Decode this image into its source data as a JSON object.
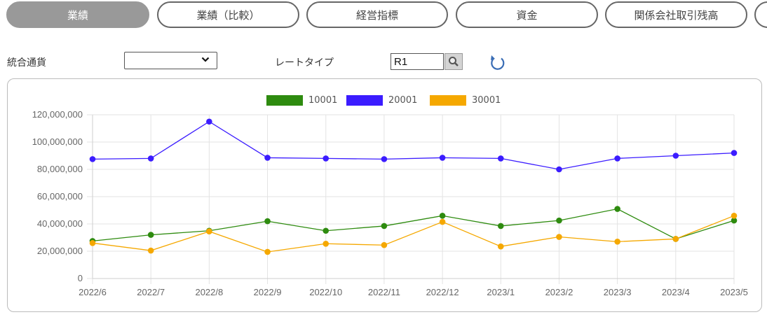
{
  "tabs": [
    {
      "label": "業績",
      "active": true
    },
    {
      "label": "業績（比較）",
      "active": false
    },
    {
      "label": "経営指標",
      "active": false
    },
    {
      "label": "資金",
      "active": false
    },
    {
      "label": "関係会社取引残高",
      "active": false
    },
    {
      "label": "",
      "active": false
    }
  ],
  "filters": {
    "currency_label": "統合通貨",
    "currency_value": "",
    "rate_type_label": "レートタイプ",
    "rate_type_value": "R1"
  },
  "icons": {
    "select_chevron": "chevron-down-icon",
    "search": "search-icon",
    "refresh": "refresh-icon"
  },
  "chart_data": {
    "type": "line",
    "categories": [
      "2022/6",
      "2022/7",
      "2022/8",
      "2022/9",
      "2022/10",
      "2022/11",
      "2022/12",
      "2023/1",
      "2023/2",
      "2023/3",
      "2023/4",
      "2023/5"
    ],
    "series": [
      {
        "name": "10001",
        "color": "#2e8b0f",
        "values": [
          27500000,
          32000000,
          35000000,
          42000000,
          35000000,
          38500000,
          46000000,
          38500000,
          42500000,
          51000000,
          29000000,
          42500000
        ]
      },
      {
        "name": "20001",
        "color": "#3b1cff",
        "values": [
          87500000,
          88000000,
          115000000,
          88500000,
          88000000,
          87500000,
          88500000,
          88000000,
          80000000,
          88000000,
          90000000,
          92000000
        ]
      },
      {
        "name": "30001",
        "color": "#f5a800",
        "values": [
          26000000,
          20500000,
          34500000,
          19500000,
          25500000,
          24500000,
          41500000,
          23500000,
          30500000,
          27000000,
          29000000,
          46000000
        ]
      }
    ],
    "yticks": [
      "0",
      "20,000,000",
      "40,000,000",
      "60,000,000",
      "80,000,000",
      "100,000,000",
      "120,000,000"
    ],
    "ylim": [
      0,
      120000000
    ],
    "grid": true,
    "legend_position": "top-center"
  }
}
